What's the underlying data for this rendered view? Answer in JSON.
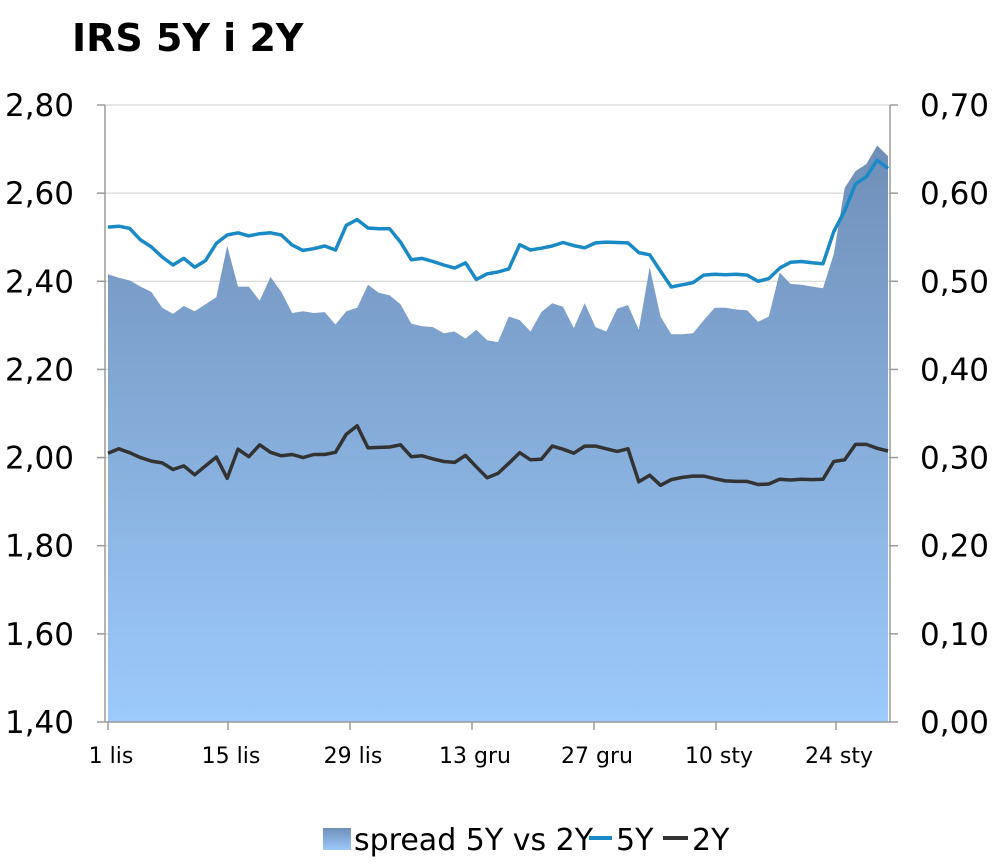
{
  "title": "IRS 5Y i 2Y",
  "chart_data": {
    "type": "line",
    "title": "IRS 5Y i 2Y",
    "x_ticks": [
      "1 lis",
      "15 lis",
      "29 lis",
      "13 gru",
      "27 gru",
      "10 sty",
      "24 sty"
    ],
    "y_left": {
      "ylim": [
        1.4,
        2.8
      ],
      "ticks": [
        "1,40",
        "1,60",
        "1,80",
        "2,00",
        "2,20",
        "2,40",
        "2,60",
        "2,80"
      ]
    },
    "y_right": {
      "ylim": [
        0.0,
        0.7
      ],
      "ticks": [
        "0,00",
        "0,10",
        "0,20",
        "0,30",
        "0,40",
        "0,50",
        "0,60",
        "0,70"
      ]
    },
    "grid": true,
    "legend_position": "bottom",
    "series": [
      {
        "name": "spread 5Y vs 2Y",
        "kind": "area",
        "axis": "right",
        "color_top": "#6f8fb8",
        "color_bottom": "#9ccafb",
        "values": [
          0.508,
          0.504,
          0.501,
          0.494,
          0.488,
          0.47,
          0.463,
          0.472,
          0.466,
          0.474,
          0.482,
          0.54,
          0.494,
          0.494,
          0.478,
          0.505,
          0.488,
          0.464,
          0.466,
          0.464,
          0.465,
          0.451,
          0.466,
          0.47,
          0.496,
          0.487,
          0.484,
          0.474,
          0.452,
          0.449,
          0.448,
          0.441,
          0.443,
          0.435,
          0.445,
          0.433,
          0.431,
          0.46,
          0.456,
          0.443,
          0.465,
          0.475,
          0.471,
          0.447,
          0.475,
          0.448,
          0.443,
          0.469,
          0.473,
          0.445,
          0.516,
          0.46,
          0.44,
          0.44,
          0.441,
          0.456,
          0.47,
          0.47,
          0.468,
          0.467,
          0.454,
          0.46,
          0.51,
          0.497,
          0.496,
          0.494,
          0.492,
          0.531,
          0.606,
          0.625,
          0.633,
          0.654,
          0.642
        ]
      },
      {
        "name": "5Y",
        "kind": "line",
        "axis": "left",
        "color": "#1a8ac6",
        "values": [
          2.523,
          2.525,
          2.52,
          2.494,
          2.478,
          2.455,
          2.437,
          2.452,
          2.432,
          2.447,
          2.486,
          2.505,
          2.51,
          2.503,
          2.508,
          2.51,
          2.505,
          2.482,
          2.47,
          2.474,
          2.48,
          2.471,
          2.527,
          2.54,
          2.521,
          2.519,
          2.519,
          2.489,
          2.449,
          2.452,
          2.445,
          2.437,
          2.43,
          2.442,
          2.404,
          2.417,
          2.421,
          2.428,
          2.483,
          2.471,
          2.475,
          2.48,
          2.488,
          2.481,
          2.476,
          2.487,
          2.489,
          2.488,
          2.487,
          2.465,
          2.46,
          2.423,
          2.387,
          2.392,
          2.397,
          2.414,
          2.416,
          2.415,
          2.416,
          2.414,
          2.4,
          2.406,
          2.43,
          2.443,
          2.445,
          2.442,
          2.44,
          2.513,
          2.56,
          2.621,
          2.637,
          2.675,
          2.656
        ]
      },
      {
        "name": "2Y",
        "kind": "line",
        "axis": "left",
        "color": "#333333",
        "values": [
          2.01,
          2.02,
          2.011,
          2.0,
          1.992,
          1.988,
          1.973,
          1.981,
          1.961,
          1.981,
          2.001,
          1.953,
          2.019,
          2.002,
          2.029,
          2.012,
          2.004,
          2.007,
          2.0,
          2.007,
          2.007,
          2.012,
          2.053,
          2.072,
          2.022,
          2.023,
          2.024,
          2.029,
          2.002,
          2.004,
          1.997,
          1.991,
          1.989,
          2.005,
          1.979,
          1.954,
          1.964,
          1.987,
          2.011,
          1.995,
          1.996,
          2.026,
          2.019,
          2.01,
          2.026,
          2.026,
          2.02,
          2.014,
          2.02,
          1.945,
          1.96,
          1.937,
          1.95,
          1.955,
          1.958,
          1.958,
          1.952,
          1.947,
          1.946,
          1.946,
          1.939,
          1.94,
          1.951,
          1.949,
          1.951,
          1.95,
          1.951,
          1.991,
          1.995,
          2.03,
          2.03,
          2.021,
          2.015
        ]
      }
    ]
  }
}
